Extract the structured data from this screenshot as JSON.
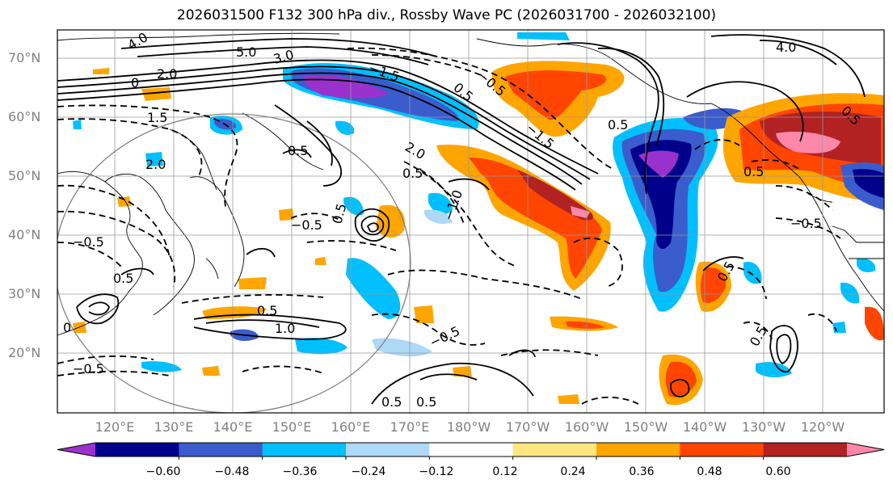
{
  "title": "2026031500 F132 300 hPa div., Rossby Wave PC (2026031700 - 2026032100)",
  "lat_labels": [
    "70°N",
    "60°N",
    "50°N",
    "40°N",
    "30°N",
    "20°N"
  ],
  "lon_labels": [
    "120°E",
    "130°E",
    "140°E",
    "150°E",
    "160°E",
    "170°E",
    "180°W",
    "170°W",
    "160°W",
    "150°W",
    "140°W",
    "130°W",
    "120°W"
  ],
  "colorbar": {
    "colors": [
      "#9932cc",
      "#00008b",
      "#3a5ccc",
      "#00bfff",
      "#add8f6",
      "#ffffff",
      "#ffe680",
      "#ffa500",
      "#ff4500",
      "#b22222",
      "#ff88aa"
    ],
    "ticks": [
      "−0.60",
      "−0.48",
      "−0.36",
      "−0.24",
      "−0.12",
      "0.12",
      "0.24",
      "0.36",
      "0.48",
      "0.60"
    ]
  },
  "contour_labels": [
    "4.0",
    "5.0",
    "2.0",
    "3.0",
    "0",
    "1.5",
    "0.5",
    "−1.5",
    "−0.5",
    "2.0",
    "0.5",
    "1.0",
    "0.5",
    "0.5",
    "−0.5",
    "0",
    "0.5",
    "2.0",
    "4.0",
    "0.5",
    "−0.5",
    "0.5",
    "−0.5",
    "0.5",
    "0.5",
    "−1.0",
    "0.5",
    "−0.5",
    "0.5",
    "−1.5",
    "−0.5",
    "0.5",
    "0.5"
  ]
}
